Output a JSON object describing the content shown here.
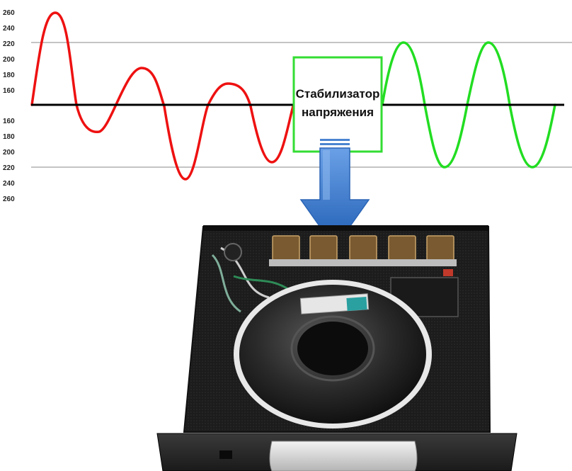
{
  "axis": {
    "upper_ticks": [
      "260",
      "240",
      "220",
      "200",
      "180",
      "160"
    ],
    "lower_ticks": [
      "160",
      "180",
      "200",
      "220",
      "240",
      "260"
    ]
  },
  "box": {
    "line1": "Стабилизатор",
    "line2": "напряжения"
  },
  "colors": {
    "unstable_wave": "#ee1111",
    "stable_wave": "#22dd22",
    "box_border": "#33dd33",
    "arrow_top": "#4f8ad6",
    "arrow_bottom": "#1f5db3",
    "baseline": "#000000",
    "gridline": "#888888"
  },
  "device": {
    "name": "stabilizer-internal-photo"
  }
}
